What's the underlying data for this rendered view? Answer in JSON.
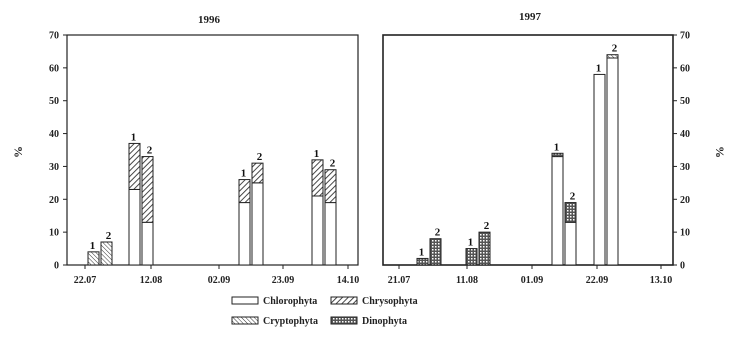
{
  "chart_data": [
    {
      "type": "bar",
      "title": "1996",
      "ylabel": "%",
      "ylim": [
        0,
        70
      ],
      "yticks": [
        "0",
        "10",
        "20",
        "30",
        "40",
        "50",
        "60",
        "70"
      ],
      "xtick_labels": [
        "22.07",
        "12.08",
        "02.09",
        "23.09",
        "14.10"
      ],
      "bar_groups": [
        {
          "bars": [
            {
              "label": "1",
              "chlorophyta": 0,
              "chrysophyta": 0,
              "cryptophyta": 4,
              "dinophyta": 0
            },
            {
              "label": "2",
              "chlorophyta": 0,
              "chrysophyta": 0,
              "cryptophyta": 7,
              "dinophyta": 0
            }
          ]
        },
        {
          "bars": [
            {
              "label": "1",
              "chlorophyta": 23,
              "chrysophyta": 14,
              "cryptophyta": 0,
              "dinophyta": 0
            },
            {
              "label": "2",
              "chlorophyta": 13,
              "chrysophyta": 20,
              "cryptophyta": 0,
              "dinophyta": 0
            }
          ]
        },
        {
          "bars": [
            {
              "label": "1",
              "chlorophyta": 19,
              "chrysophyta": 7,
              "cryptophyta": 0,
              "dinophyta": 0
            },
            {
              "label": "2",
              "chlorophyta": 25,
              "chrysophyta": 6,
              "cryptophyta": 0,
              "dinophyta": 0
            }
          ]
        },
        {
          "bars": [
            {
              "label": "1",
              "chlorophyta": 21,
              "chrysophyta": 11,
              "cryptophyta": 0,
              "dinophyta": 0
            },
            {
              "label": "2",
              "chlorophyta": 19,
              "chrysophyta": 10,
              "cryptophyta": 0,
              "dinophyta": 0
            }
          ]
        }
      ]
    },
    {
      "type": "bar",
      "title": "1997",
      "ylabel": "%",
      "ylim": [
        0,
        70
      ],
      "yticks": [
        "0",
        "10",
        "20",
        "30",
        "40",
        "50",
        "60",
        "70"
      ],
      "xtick_labels": [
        "21.07",
        "11.08",
        "01.09",
        "22.09",
        "13.10"
      ],
      "bar_groups": [
        {
          "bars": [
            {
              "label": "1",
              "chlorophyta": 0,
              "chrysophyta": 0,
              "cryptophyta": 0,
              "dinophyta": 2
            },
            {
              "label": "2",
              "chlorophyta": 0,
              "chrysophyta": 0,
              "cryptophyta": 0,
              "dinophyta": 8
            }
          ]
        },
        {
          "bars": [
            {
              "label": "1",
              "chlorophyta": 0,
              "chrysophyta": 0,
              "cryptophyta": 0,
              "dinophyta": 5
            },
            {
              "label": "2",
              "chlorophyta": 0,
              "chrysophyta": 0,
              "cryptophyta": 0,
              "dinophyta": 10
            }
          ]
        },
        {
          "bars": [
            {
              "label": "1",
              "chlorophyta": 33,
              "chrysophyta": 0,
              "cryptophyta": 0,
              "dinophyta": 1
            },
            {
              "label": "2",
              "chlorophyta": 13,
              "chrysophyta": 0,
              "cryptophyta": 0,
              "dinophyta": 6
            }
          ]
        },
        {
          "bars": [
            {
              "label": "1",
              "chlorophyta": 58,
              "chrysophyta": 0,
              "cryptophyta": 0,
              "dinophyta": 0
            },
            {
              "label": "2",
              "chlorophyta": 63,
              "chrysophyta": 0,
              "cryptophyta": 1,
              "dinophyta": 0
            }
          ]
        }
      ]
    }
  ],
  "legend": [
    {
      "key": "chlorophyta",
      "label": "Chlorophyta"
    },
    {
      "key": "chrysophyta",
      "label": "Chrysophyta"
    },
    {
      "key": "cryptophyta",
      "label": "Cryptophyta"
    },
    {
      "key": "dinophyta",
      "label": "Dinophyta"
    }
  ]
}
